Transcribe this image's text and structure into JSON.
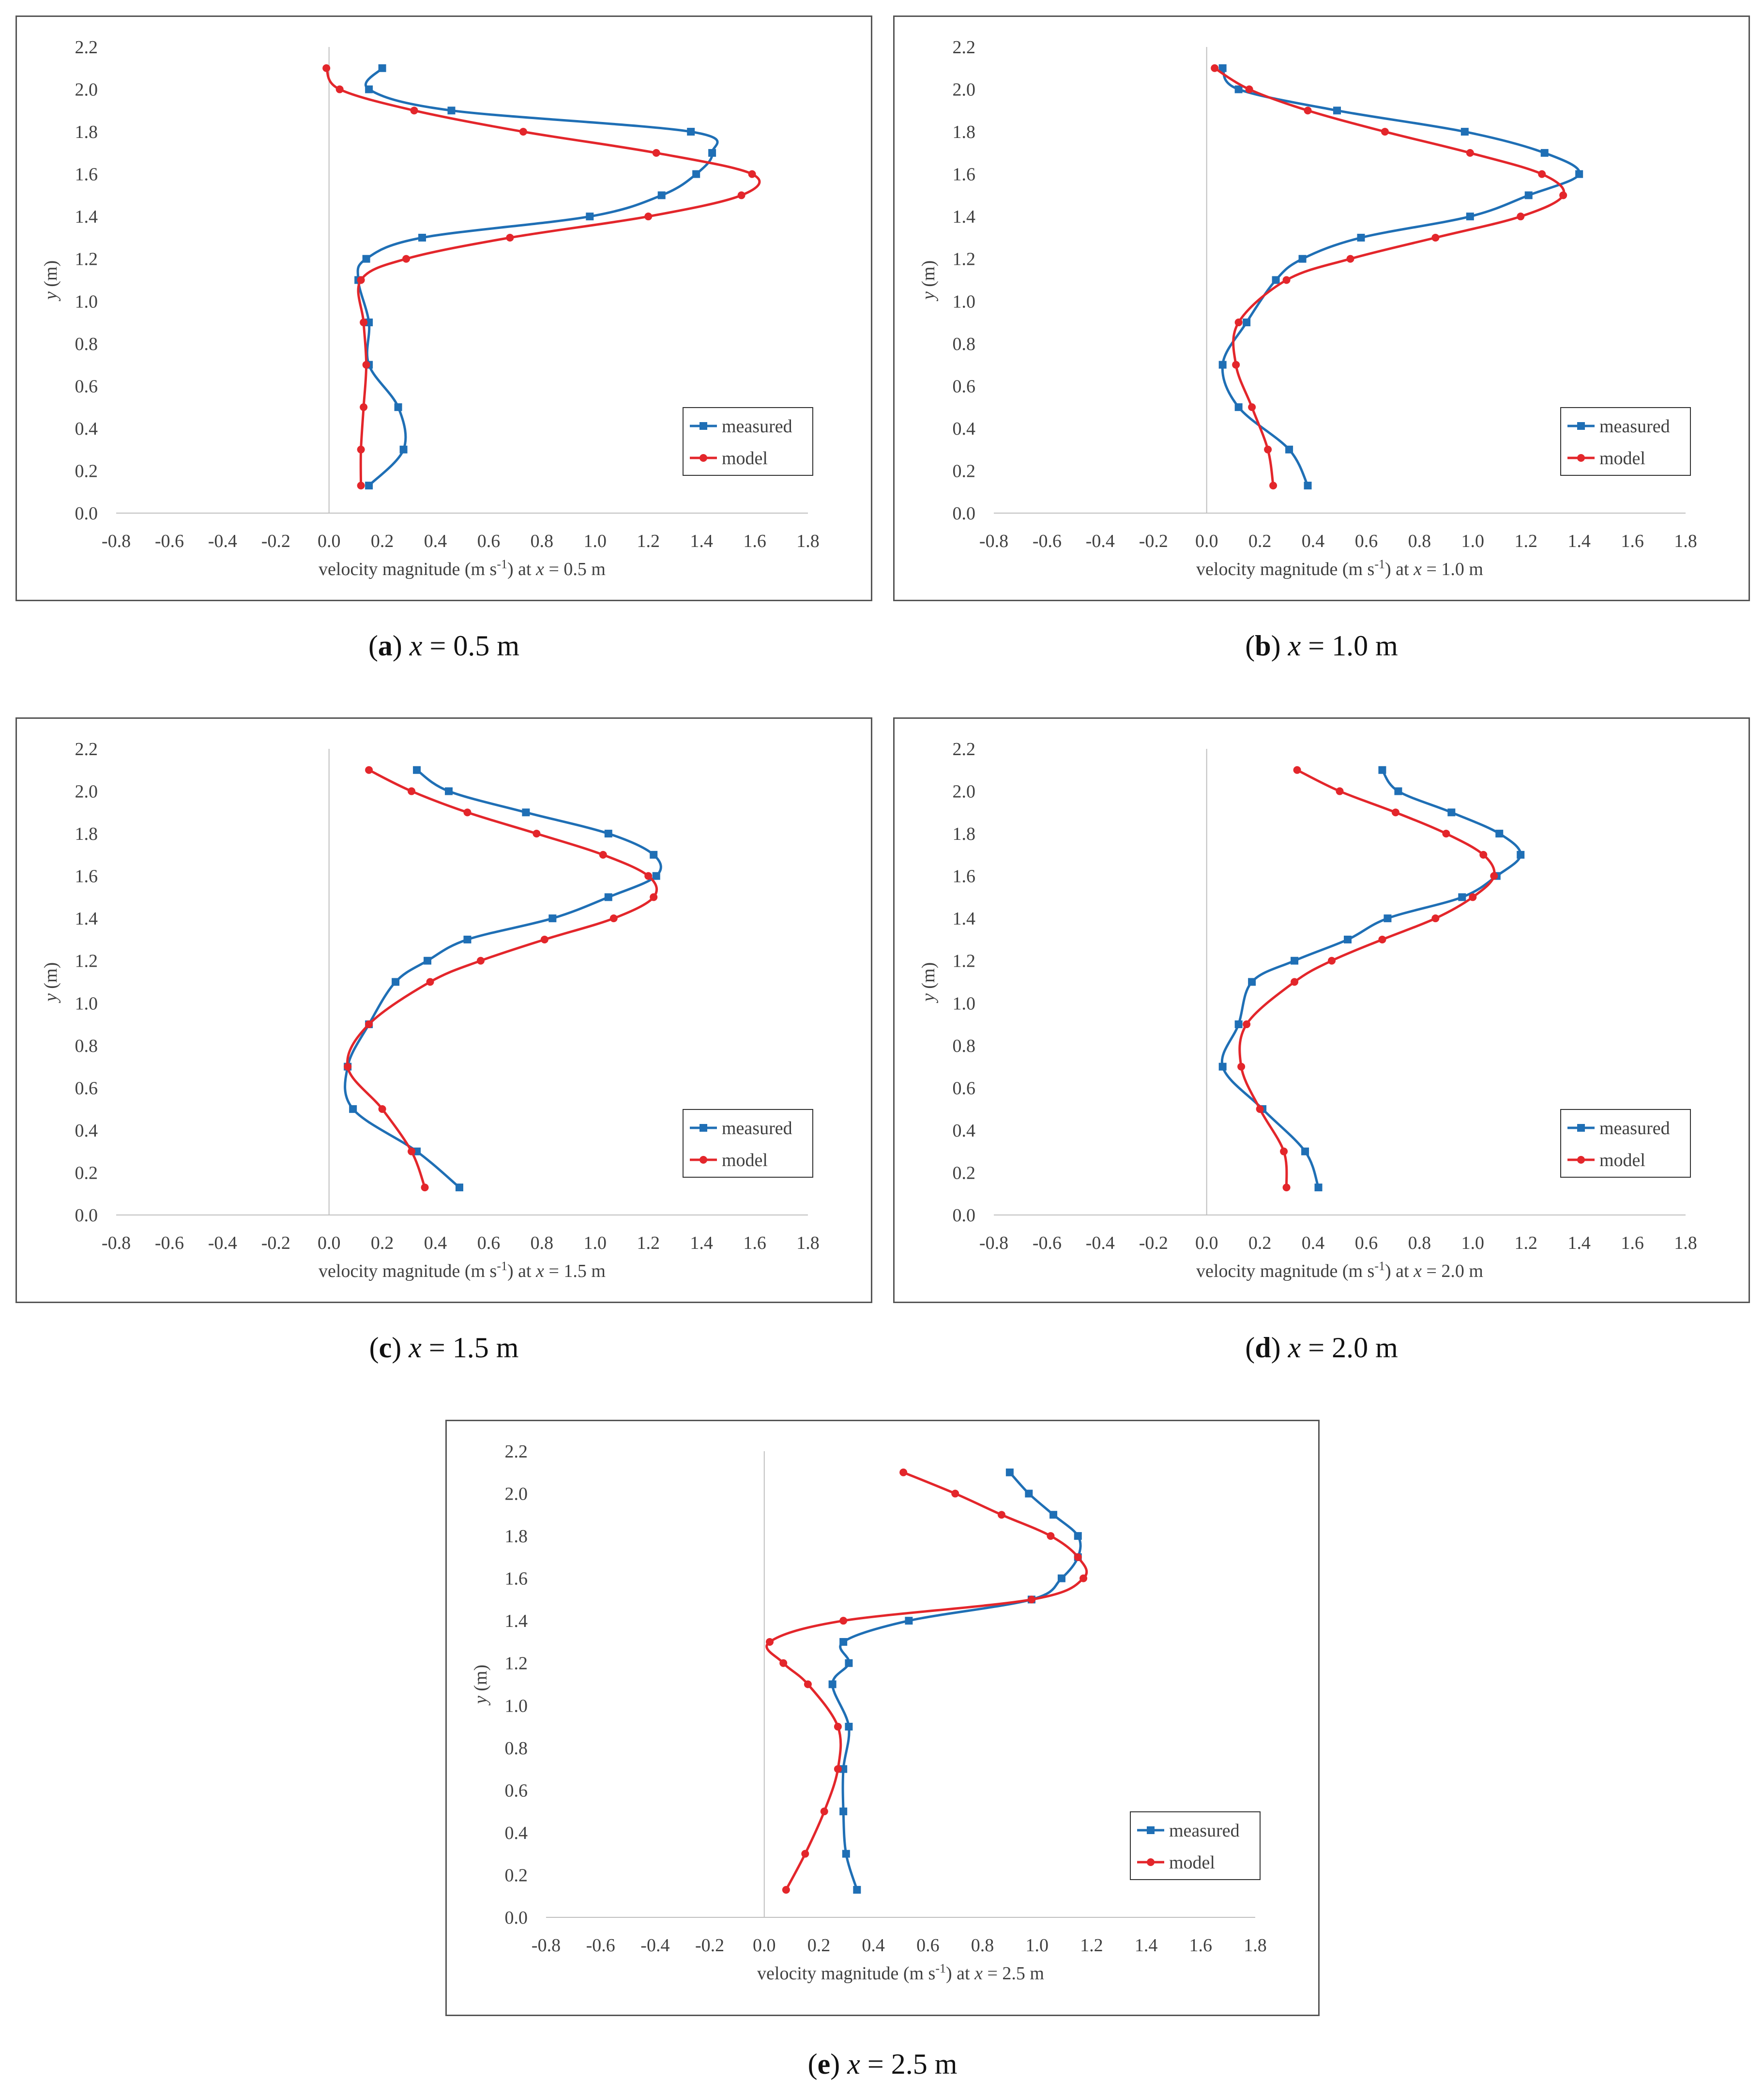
{
  "charts": [
    {
      "id": "a",
      "caption": {
        "letter": "a",
        "var": "x",
        "rest": "= 0.5 m"
      },
      "chart_data": {
        "type": "line",
        "xlabel": "velocity magnitude (m s",
        "xlabel_sup": "-1",
        "xlabel_post": ") at ",
        "xlabel_var": "x",
        "xlabel_tail": " = 0.5 m",
        "ylabel_var": "y",
        "ylabel_tail": " (m)",
        "xlim": [
          -0.8,
          1.8
        ],
        "ylim": [
          0.0,
          2.2
        ],
        "xticks": [
          "-0.8",
          "-0.6",
          "-0.4",
          "-0.2",
          "0.0",
          "0.2",
          "0.4",
          "0.6",
          "0.8",
          "1.0",
          "1.2",
          "1.4",
          "1.6",
          "1.8"
        ],
        "yticks": [
          "0.0",
          "0.2",
          "0.4",
          "0.6",
          "0.8",
          "1.0",
          "1.2",
          "1.4",
          "1.6",
          "1.8",
          "2.0",
          "2.2"
        ],
        "legend": "bottom-right",
        "series": [
          {
            "name": "measured",
            "color": "#1f6fb5",
            "marker": "square",
            "x": [
              0.15,
              0.28,
              0.26,
              0.15,
              0.15,
              0.11,
              0.14,
              0.35,
              0.98,
              1.25,
              1.38,
              1.44,
              1.36,
              0.46,
              0.15,
              0.2
            ],
            "y": [
              0.13,
              0.3,
              0.5,
              0.7,
              0.9,
              1.1,
              1.2,
              1.3,
              1.4,
              1.5,
              1.6,
              1.7,
              1.8,
              1.9,
              2.0,
              2.1
            ]
          },
          {
            "name": "model",
            "color": "#e3262b",
            "marker": "circle",
            "x": [
              0.12,
              0.12,
              0.13,
              0.14,
              0.13,
              0.12,
              0.29,
              0.68,
              1.2,
              1.55,
              1.59,
              1.23,
              0.73,
              0.32,
              0.04,
              -0.01
            ],
            "y": [
              0.13,
              0.3,
              0.5,
              0.7,
              0.9,
              1.1,
              1.2,
              1.3,
              1.4,
              1.5,
              1.6,
              1.7,
              1.8,
              1.9,
              2.0,
              2.1
            ]
          }
        ]
      }
    },
    {
      "id": "b",
      "caption": {
        "letter": "b",
        "var": "x",
        "rest": "= 1.0 m"
      },
      "chart_data": {
        "type": "line",
        "xlabel": "velocity magnitude (m s",
        "xlabel_sup": "-1",
        "xlabel_post": ") at ",
        "xlabel_var": "x",
        "xlabel_tail": " = 1.0 m",
        "ylabel_var": "y",
        "ylabel_tail": " (m)",
        "xlim": [
          -0.8,
          1.8
        ],
        "ylim": [
          0.0,
          2.2
        ],
        "xticks": [
          "-0.8",
          "-0.6",
          "-0.4",
          "-0.2",
          "0.0",
          "0.2",
          "0.4",
          "0.6",
          "0.8",
          "1.0",
          "1.2",
          "1.4",
          "1.6",
          "1.8"
        ],
        "yticks": [
          "0.0",
          "0.2",
          "0.4",
          "0.6",
          "0.8",
          "1.0",
          "1.2",
          "1.4",
          "1.6",
          "1.8",
          "2.0",
          "2.2"
        ],
        "legend": "bottom-right",
        "series": [
          {
            "name": "measured",
            "color": "#1f6fb5",
            "marker": "square",
            "x": [
              0.38,
              0.31,
              0.12,
              0.06,
              0.15,
              0.26,
              0.36,
              0.58,
              0.99,
              1.21,
              1.4,
              1.27,
              0.97,
              0.49,
              0.12,
              0.06
            ],
            "y": [
              0.13,
              0.3,
              0.5,
              0.7,
              0.9,
              1.1,
              1.2,
              1.3,
              1.4,
              1.5,
              1.6,
              1.7,
              1.8,
              1.9,
              2.0,
              2.1
            ]
          },
          {
            "name": "model",
            "color": "#e3262b",
            "marker": "circle",
            "x": [
              0.25,
              0.23,
              0.17,
              0.11,
              0.12,
              0.3,
              0.54,
              0.86,
              1.18,
              1.34,
              1.26,
              0.99,
              0.67,
              0.38,
              0.16,
              0.03
            ],
            "y": [
              0.13,
              0.3,
              0.5,
              0.7,
              0.9,
              1.1,
              1.2,
              1.3,
              1.4,
              1.5,
              1.6,
              1.7,
              1.8,
              1.9,
              2.0,
              2.1
            ]
          }
        ]
      }
    },
    {
      "id": "c",
      "caption": {
        "letter": "c",
        "var": "x",
        "rest": "= 1.5 m"
      },
      "chart_data": {
        "type": "line",
        "xlabel": "velocity magnitude (m s",
        "xlabel_sup": "-1",
        "xlabel_post": ") at ",
        "xlabel_var": "x",
        "xlabel_tail": " = 1.5 m",
        "ylabel_var": "y",
        "ylabel_tail": " (m)",
        "xlim": [
          -0.8,
          1.8
        ],
        "ylim": [
          0.0,
          2.2
        ],
        "xticks": [
          "-0.8",
          "-0.6",
          "-0.4",
          "-0.2",
          "0.0",
          "0.2",
          "0.4",
          "0.6",
          "0.8",
          "1.0",
          "1.2",
          "1.4",
          "1.6",
          "1.8"
        ],
        "yticks": [
          "0.0",
          "0.2",
          "0.4",
          "0.6",
          "0.8",
          "1.0",
          "1.2",
          "1.4",
          "1.6",
          "1.8",
          "2.0",
          "2.2"
        ],
        "legend": "bottom-right",
        "series": [
          {
            "name": "measured",
            "color": "#1f6fb5",
            "marker": "square",
            "x": [
              0.49,
              0.33,
              0.09,
              0.07,
              0.15,
              0.25,
              0.37,
              0.52,
              0.84,
              1.05,
              1.23,
              1.22,
              1.05,
              0.74,
              0.45,
              0.33
            ],
            "y": [
              0.13,
              0.3,
              0.5,
              0.7,
              0.9,
              1.1,
              1.2,
              1.3,
              1.4,
              1.5,
              1.6,
              1.7,
              1.8,
              1.9,
              2.0,
              2.1
            ]
          },
          {
            "name": "model",
            "color": "#e3262b",
            "marker": "circle",
            "x": [
              0.36,
              0.31,
              0.2,
              0.07,
              0.15,
              0.38,
              0.57,
              0.81,
              1.07,
              1.22,
              1.2,
              1.03,
              0.78,
              0.52,
              0.31,
              0.15
            ],
            "y": [
              0.13,
              0.3,
              0.5,
              0.7,
              0.9,
              1.1,
              1.2,
              1.3,
              1.4,
              1.5,
              1.6,
              1.7,
              1.8,
              1.9,
              2.0,
              2.1
            ]
          }
        ]
      }
    },
    {
      "id": "d",
      "caption": {
        "letter": "d",
        "var": "x",
        "rest": "= 2.0 m"
      },
      "chart_data": {
        "type": "line",
        "xlabel": "velocity magnitude (m s",
        "xlabel_sup": "-1",
        "xlabel_post": ") at ",
        "xlabel_var": "x",
        "xlabel_tail": " = 2.0 m",
        "ylabel_var": "y",
        "ylabel_tail": " (m)",
        "xlim": [
          -0.8,
          1.8
        ],
        "ylim": [
          0.0,
          2.2
        ],
        "xticks": [
          "-0.8",
          "-0.6",
          "-0.4",
          "-0.2",
          "0.0",
          "0.2",
          "0.4",
          "0.6",
          "0.8",
          "1.0",
          "1.2",
          "1.4",
          "1.6",
          "1.8"
        ],
        "yticks": [
          "0.0",
          "0.2",
          "0.4",
          "0.6",
          "0.8",
          "1.0",
          "1.2",
          "1.4",
          "1.6",
          "1.8",
          "2.0",
          "2.2"
        ],
        "legend": "bottom-right",
        "series": [
          {
            "name": "measured",
            "color": "#1f6fb5",
            "marker": "square",
            "x": [
              0.42,
              0.37,
              0.21,
              0.06,
              0.12,
              0.17,
              0.33,
              0.53,
              0.68,
              0.96,
              1.09,
              1.18,
              1.1,
              0.92,
              0.72,
              0.66
            ],
            "y": [
              0.13,
              0.3,
              0.5,
              0.7,
              0.9,
              1.1,
              1.2,
              1.3,
              1.4,
              1.5,
              1.6,
              1.7,
              1.8,
              1.9,
              2.0,
              2.1
            ]
          },
          {
            "name": "model",
            "color": "#e3262b",
            "marker": "circle",
            "x": [
              0.3,
              0.29,
              0.2,
              0.13,
              0.15,
              0.33,
              0.47,
              0.66,
              0.86,
              1.0,
              1.08,
              1.04,
              0.9,
              0.71,
              0.5,
              0.34
            ],
            "y": [
              0.13,
              0.3,
              0.5,
              0.7,
              0.9,
              1.1,
              1.2,
              1.3,
              1.4,
              1.5,
              1.6,
              1.7,
              1.8,
              1.9,
              2.0,
              2.1
            ]
          }
        ]
      }
    },
    {
      "id": "e",
      "caption": {
        "letter": "e",
        "var": "x",
        "rest": "= 2.5 m"
      },
      "chart_data": {
        "type": "line",
        "xlabel": "velocity magnitude (m s",
        "xlabel_sup": "-1",
        "xlabel_post": ") at ",
        "xlabel_var": "x",
        "xlabel_tail": " = 2.5 m",
        "ylabel_var": "y",
        "ylabel_tail": " (m)",
        "xlim": [
          -0.8,
          1.8
        ],
        "ylim": [
          0.0,
          2.2
        ],
        "xticks": [
          "-0.8",
          "-0.6",
          "-0.4",
          "-0.2",
          "0.0",
          "0.2",
          "0.4",
          "0.6",
          "0.8",
          "1.0",
          "1.2",
          "1.4",
          "1.6",
          "1.8"
        ],
        "yticks": [
          "0.0",
          "0.2",
          "0.4",
          "0.6",
          "0.8",
          "1.0",
          "1.2",
          "1.4",
          "1.6",
          "1.8",
          "2.0",
          "2.2"
        ],
        "legend": "bottom-right",
        "series": [
          {
            "name": "measured",
            "color": "#1f6fb5",
            "marker": "square",
            "x": [
              0.34,
              0.3,
              0.29,
              0.29,
              0.31,
              0.25,
              0.31,
              0.29,
              0.53,
              0.98,
              1.09,
              1.15,
              1.15,
              1.06,
              0.97,
              0.9
            ],
            "y": [
              0.13,
              0.3,
              0.5,
              0.7,
              0.9,
              1.1,
              1.2,
              1.3,
              1.4,
              1.5,
              1.6,
              1.7,
              1.8,
              1.9,
              2.0,
              2.1
            ]
          },
          {
            "name": "model",
            "color": "#e3262b",
            "marker": "circle",
            "x": [
              0.08,
              0.15,
              0.22,
              0.27,
              0.27,
              0.16,
              0.07,
              0.02,
              0.29,
              0.98,
              1.17,
              1.15,
              1.05,
              0.87,
              0.7,
              0.51
            ],
            "y": [
              0.13,
              0.3,
              0.5,
              0.7,
              0.9,
              1.1,
              1.2,
              1.3,
              1.4,
              1.5,
              1.6,
              1.7,
              1.8,
              1.9,
              2.0,
              2.1
            ]
          }
        ]
      }
    }
  ]
}
